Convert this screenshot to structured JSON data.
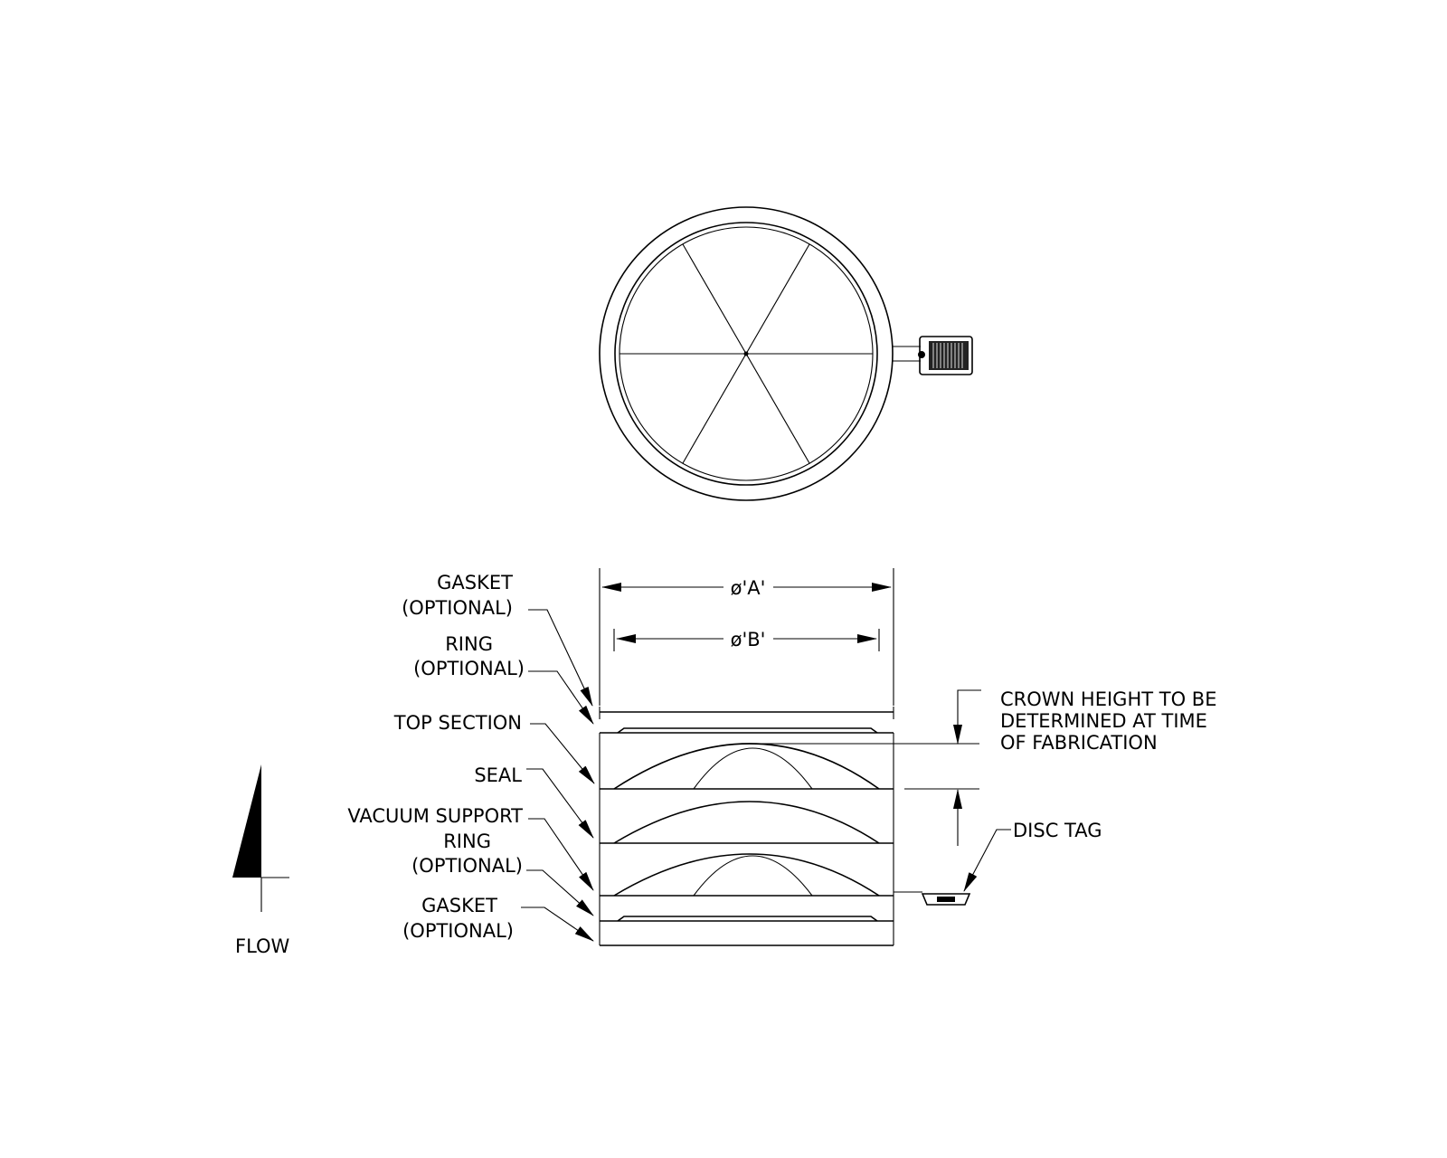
{
  "labels": {
    "gasket_top_1": "GASKET",
    "gasket_top_2": "(OPTIONAL)",
    "ring_top_1": "RING",
    "ring_top_2": "(OPTIONAL)",
    "top_section": "TOP SECTION",
    "seal": "SEAL",
    "vacuum_1": "VACUUM SUPPORT",
    "vacuum_2": "RING",
    "vacuum_3": "(OPTIONAL)",
    "gasket_bot_1": "GASKET",
    "gasket_bot_2": "(OPTIONAL)",
    "dim_a": "ø'A'",
    "dim_b": "ø'B'",
    "crown_1": "CROWN HEIGHT TO BE",
    "crown_2": "DETERMINED AT TIME",
    "crown_3": "OF FABRICATION",
    "disc_tag": "DISC TAG",
    "flow": "FLOW"
  }
}
